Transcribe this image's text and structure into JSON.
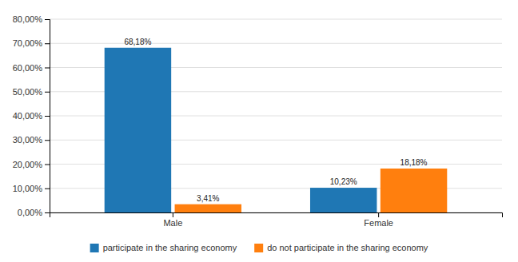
{
  "chart_data": {
    "type": "bar",
    "categories": [
      "Male",
      "Female"
    ],
    "series": [
      {
        "name": "participate in the sharing economy",
        "values": [
          68.18,
          10.23
        ],
        "value_labels": [
          "68,18%",
          "10,23%"
        ]
      },
      {
        "name": "do not participate in the sharing economy",
        "values": [
          3.41,
          18.18
        ],
        "value_labels": [
          "3,41%",
          "18,18%"
        ]
      }
    ],
    "ylim": [
      0,
      80
    ],
    "yticks": [
      {
        "value": 0,
        "label": "0,00%"
      },
      {
        "value": 10,
        "label": "10,00%"
      },
      {
        "value": 20,
        "label": "20,00%"
      },
      {
        "value": 30,
        "label": "30,00%"
      },
      {
        "value": 40,
        "label": "40,00%"
      },
      {
        "value": 50,
        "label": "50,00%"
      },
      {
        "value": 60,
        "label": "60,00%"
      },
      {
        "value": 70,
        "label": "70,00%"
      },
      {
        "value": 80,
        "label": "80,00%"
      }
    ],
    "grid": true,
    "data_labels": true,
    "legend": "bottom"
  }
}
